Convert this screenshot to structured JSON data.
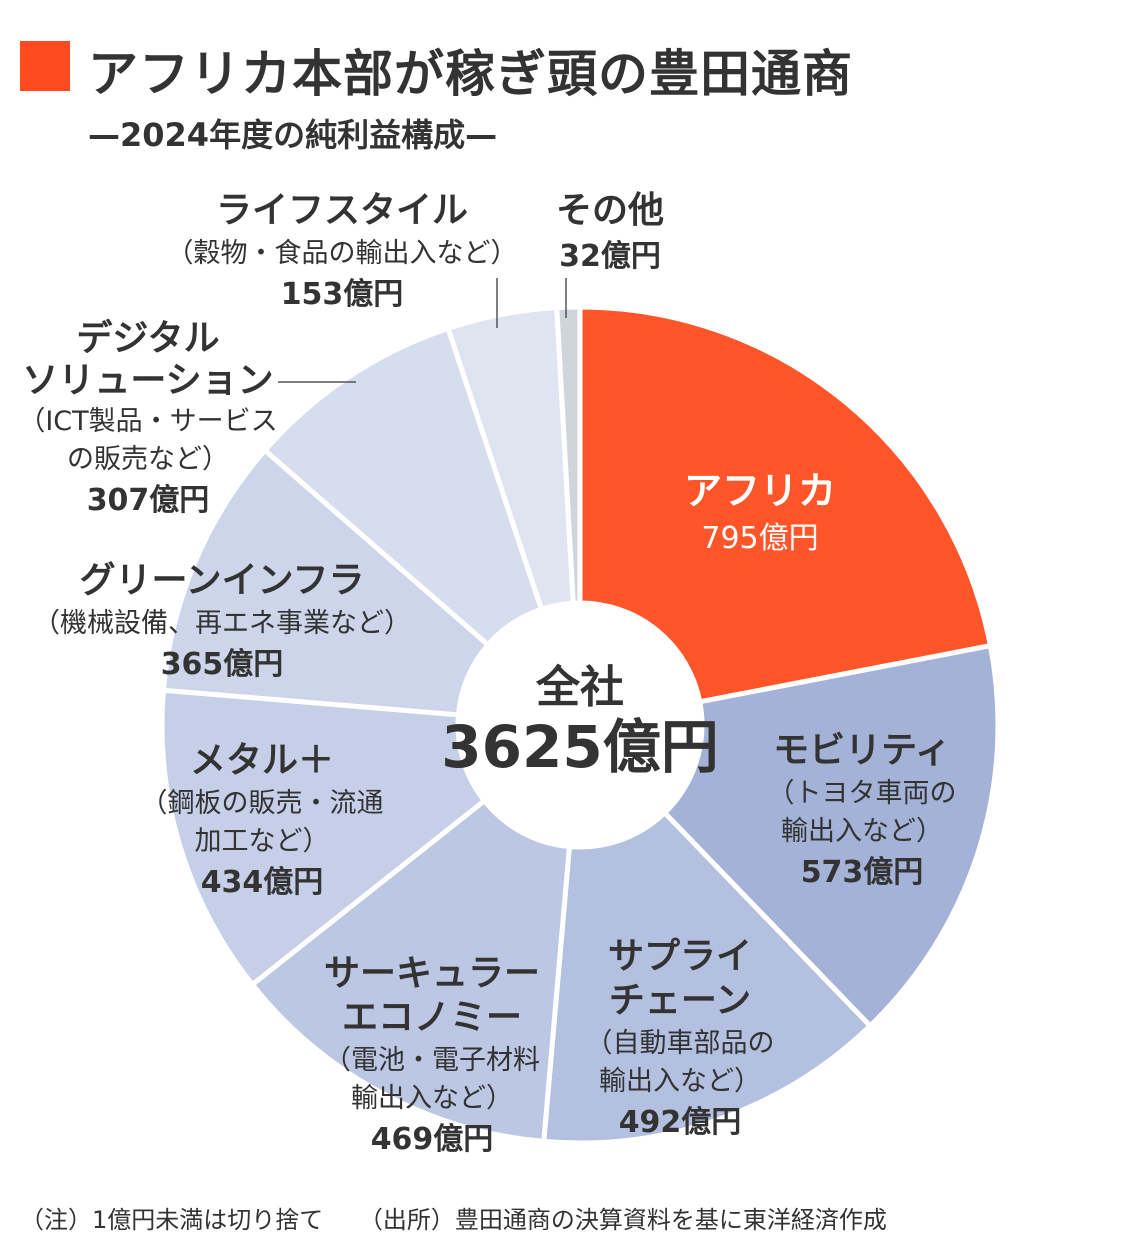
{
  "title": "アフリカ本部が稼ぎ頭の豊田通商",
  "subtitle": "—2024年度の純利益構成—",
  "colors": {
    "accent": "#FF5529",
    "title_mark": "#FF4B1F"
  },
  "center": {
    "label": "全社",
    "total": "3625億円"
  },
  "chart_data": {
    "type": "pie",
    "title": "アフリカ本部が稼ぎ頭の豊田通商",
    "subtitle": "—2024年度の純利益構成—",
    "unit": "億円",
    "total": 3625,
    "slices": [
      {
        "name": "アフリカ",
        "value": 795,
        "detail": [],
        "value_label": "795億円",
        "color": "#FF5529"
      },
      {
        "name": "モビリティ",
        "value": 573,
        "detail": [
          "（トヨタ車両の",
          "輸出入など）"
        ],
        "value_label": "573億円",
        "color": "#A3B2D6"
      },
      {
        "name": "サプライチェーン",
        "value": 492,
        "display": [
          "サプライ",
          "チェーン"
        ],
        "detail": [
          "（自動車部品の",
          "輸出入など）"
        ],
        "value_label": "492億円",
        "color": "#B3C0E0"
      },
      {
        "name": "サーキュラーエコノミー",
        "value": 469,
        "display": [
          "サーキュラー",
          "エコノミー"
        ],
        "detail": [
          "（電池・電子材料",
          "輸出入など）"
        ],
        "value_label": "469億円",
        "color": "#BCC7E3"
      },
      {
        "name": "メタル＋",
        "value": 434,
        "detail": [
          "（鋼板の販売・流通",
          "加工など）"
        ],
        "value_label": "434億円",
        "color": "#C5CFE7"
      },
      {
        "name": "グリーンインフラ",
        "value": 365,
        "detail": [
          "（機械設備、再エネ事業など）"
        ],
        "value_label": "365億円",
        "color": "#CDD5EA"
      },
      {
        "name": "デジタルソリューション",
        "value": 307,
        "display": [
          "デジタル",
          "ソリューション"
        ],
        "detail": [
          "（ICT製品・サービス",
          "の販売など）"
        ],
        "value_label": "307億円",
        "color": "#D6DDEE"
      },
      {
        "name": "ライフスタイル",
        "value": 153,
        "detail": [
          "（穀物・食品の輸出入など）"
        ],
        "value_label": "153億円",
        "color": "#DFE4F1"
      },
      {
        "name": "その他",
        "value": 32,
        "detail": [],
        "value_label": "32億円",
        "color": "#D0D4DB"
      }
    ]
  },
  "footer": {
    "note": "（注）1億円未満は切り捨て",
    "source": "（出所）豊田通商の決算資料を基に東洋経済作成"
  }
}
